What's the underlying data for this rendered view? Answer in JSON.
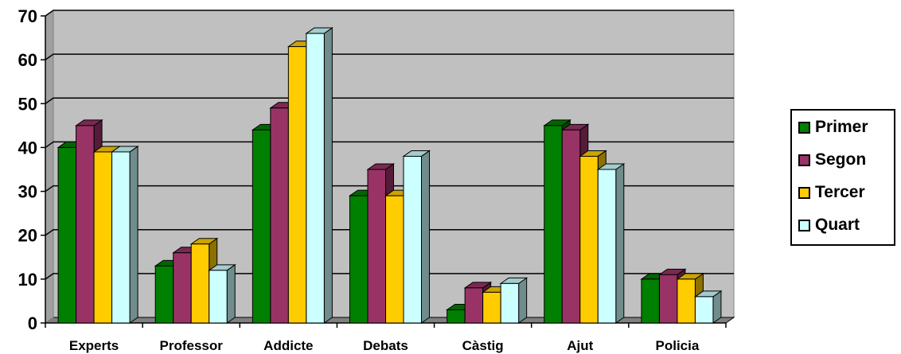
{
  "chart_data": {
    "type": "bar",
    "categories": [
      "Experts",
      "Professor",
      "Addicte",
      "Debats",
      "Càstig",
      "Ajut",
      "Policia"
    ],
    "series": [
      {
        "name": "Primer",
        "values": [
          40,
          13,
          44,
          29,
          3,
          45,
          10
        ],
        "color": "#008000"
      },
      {
        "name": "Segon",
        "values": [
          45,
          16,
          49,
          35,
          8,
          44,
          11
        ],
        "color": "#993366"
      },
      {
        "name": "Tercer",
        "values": [
          39,
          18,
          63,
          29,
          7,
          38,
          10
        ],
        "color": "#ffcc00"
      },
      {
        "name": "Quart",
        "values": [
          39,
          12,
          66,
          38,
          9,
          35,
          6
        ],
        "color": "#ccffff"
      }
    ],
    "yticks": [
      "0",
      "10",
      "20",
      "30",
      "40",
      "50",
      "60",
      "70"
    ],
    "ylim": [
      0,
      70
    ],
    "grid": true,
    "wall_color": "#c0c0c0",
    "legend_position": "right"
  }
}
